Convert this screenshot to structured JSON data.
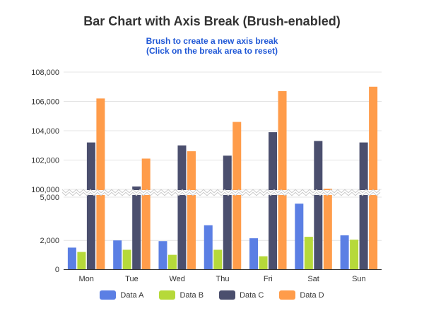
{
  "title": "Bar Chart with Axis Break (Brush-enabled)",
  "subtitle": {
    "line1": "Brush to create a new axis break",
    "line2": "(Click on the break area to reset)"
  },
  "colors": {
    "Data A": "#5b7fe4",
    "Data B": "#b6d93a",
    "Data C": "#4b4f6e",
    "Data D": "#ff9c4a",
    "grid": "#e4e4e4",
    "axis": "#333333",
    "title": "#333333",
    "subtitle": "#1f57d6"
  },
  "chart_data": {
    "type": "bar",
    "title": "Bar Chart with Axis Break (Brush-enabled)",
    "categories": [
      "Mon",
      "Tue",
      "Wed",
      "Thu",
      "Fri",
      "Sat",
      "Sun"
    ],
    "series": [
      {
        "name": "Data A",
        "values": [
          1500,
          2000,
          1950,
          3050,
          2150,
          4550,
          2350
        ]
      },
      {
        "name": "Data B",
        "values": [
          1200,
          1350,
          1000,
          1350,
          900,
          2250,
          2050
        ]
      },
      {
        "name": "Data C",
        "values": [
          103200,
          100200,
          103000,
          102300,
          103900,
          103300,
          103200
        ]
      },
      {
        "name": "Data D",
        "values": [
          106200,
          102100,
          102600,
          104600,
          106700,
          100050,
          107000
        ]
      }
    ],
    "axis_break": {
      "from": 5000,
      "to": 100000
    },
    "y_ticks_lower": [
      "0",
      "2,000",
      "5,000"
    ],
    "y_ticks_upper": [
      "100,000",
      "102,000",
      "104,000",
      "106,000",
      "108,000"
    ],
    "ylim": [
      0,
      108000
    ],
    "grid": true,
    "legend_position": "bottom"
  }
}
